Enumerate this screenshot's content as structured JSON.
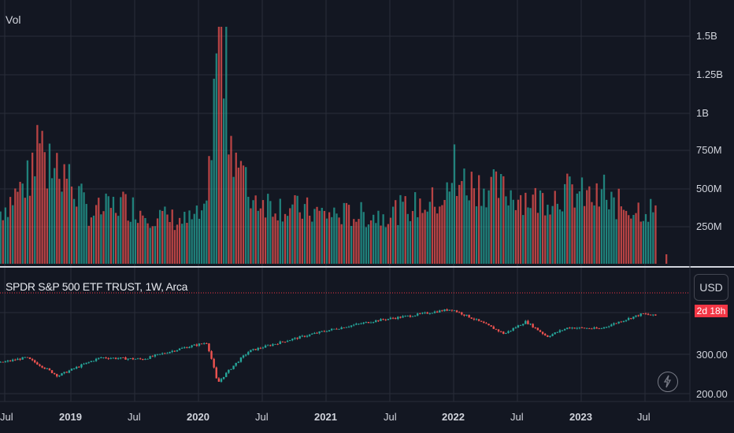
{
  "volume_pane": {
    "title": "Vol",
    "y_ticks": [
      "1.5B",
      "1.25B",
      "1B",
      "750M",
      "500M",
      "250M"
    ]
  },
  "price_pane": {
    "title": "SPDR S&P 500 ETF TRUST, 1W, Arca",
    "currency_button": "USD",
    "last_price_badge": "2d 18h",
    "y_ticks": [
      "300.00",
      "200.00"
    ]
  },
  "x_axis_labels": [
    "Jul",
    "2019",
    "Jul",
    "2020",
    "Jul",
    "2021",
    "Jul",
    "2022",
    "Jul",
    "2023",
    "Jul"
  ],
  "colors": {
    "background": "#131722",
    "up": "#26a69a",
    "down": "#ef5350",
    "grid": "#2a2e39"
  },
  "chart_data": [
    {
      "type": "bar",
      "title": "Vol",
      "ylim": [
        0,
        1700000000
      ],
      "anchors": [
        [
          "2018-06",
          300000000
        ],
        [
          "2018-10",
          620000000
        ],
        [
          "2018-12",
          680000000
        ],
        [
          "2019-03",
          330000000
        ],
        [
          "2019-06",
          400000000
        ],
        [
          "2019-09",
          320000000
        ],
        [
          "2019-12",
          280000000
        ],
        [
          "2020-02",
          330000000
        ],
        [
          "2020-03",
          1600000000
        ],
        [
          "2020-04",
          900000000
        ],
        [
          "2020-06",
          450000000
        ],
        [
          "2020-09",
          380000000
        ],
        [
          "2021-01",
          330000000
        ],
        [
          "2021-06",
          320000000
        ],
        [
          "2021-12",
          420000000
        ],
        [
          "2022-02",
          550000000
        ],
        [
          "2022-06",
          480000000
        ],
        [
          "2022-09",
          420000000
        ],
        [
          "2022-12",
          480000000
        ],
        [
          "2023-03",
          420000000
        ],
        [
          "2023-06",
          370000000
        ],
        [
          "2023-08",
          360000000
        ]
      ]
    },
    {
      "type": "line",
      "title": "SPDR S&P 500 ETF TRUST, 1W, Arca",
      "ylim": [
        200,
        480
      ],
      "anchors": [
        [
          "2018-06",
          271
        ],
        [
          "2018-09",
          290
        ],
        [
          "2018-12",
          240
        ],
        [
          "2019-04",
          290
        ],
        [
          "2019-08",
          285
        ],
        [
          "2019-12",
          322
        ],
        [
          "2020-02",
          338
        ],
        [
          "2020-03",
          222
        ],
        [
          "2020-06",
          310
        ],
        [
          "2020-09",
          340
        ],
        [
          "2021-01",
          380
        ],
        [
          "2021-06",
          425
        ],
        [
          "2021-09",
          445
        ],
        [
          "2022-01",
          477
        ],
        [
          "2022-06",
          370
        ],
        [
          "2022-08",
          420
        ],
        [
          "2022-10",
          360
        ],
        [
          "2022-12",
          395
        ],
        [
          "2023-03",
          390
        ],
        [
          "2023-07",
          455
        ],
        [
          "2023-08",
          447
        ]
      ]
    }
  ]
}
